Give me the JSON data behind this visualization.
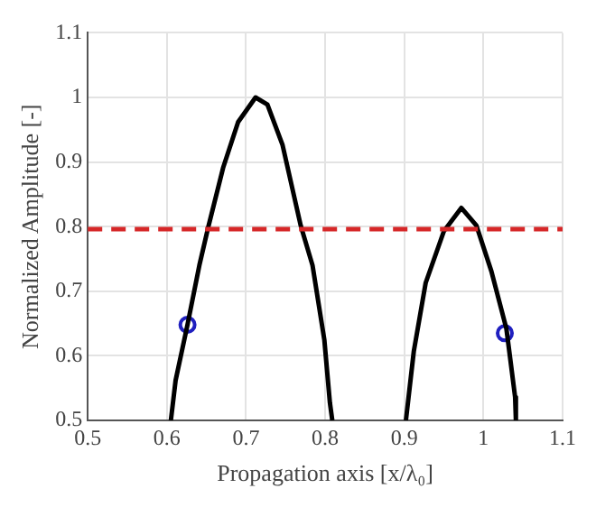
{
  "chart_data": {
    "type": "line",
    "xlabel": "Propagation axis [x/λ₀]",
    "ylabel": "Normalized Amplitude [-]",
    "xlim": [
      0.5,
      1.1
    ],
    "xticks": [
      0.5,
      0.6,
      0.7,
      0.8,
      0.9,
      1,
      1.1
    ],
    "ylim": [
      0.5,
      1.1
    ],
    "yticks": [
      0.5,
      0.6,
      0.7,
      0.8,
      0.9,
      1,
      1.1
    ],
    "grid": true,
    "legend": false,
    "line_style": "solid",
    "series": [
      {
        "color": "#000000",
        "marker": "none",
        "x": [
          0.605,
          0.611,
          0.626,
          0.641,
          0.652,
          0.671,
          0.69,
          0.712,
          0.727,
          0.746,
          0.769,
          0.784,
          0.799,
          0.806,
          0.809
        ],
        "values": [
          0.5,
          0.562,
          0.648,
          0.74,
          0.798,
          0.891,
          0.962,
          1.0,
          0.989,
          0.927,
          0.802,
          0.74,
          0.624,
          0.527,
          0.5
        ]
      },
      {
        "color": "#000000",
        "marker": "none",
        "x": [
          0.902,
          0.912,
          0.927,
          0.95,
          0.972,
          0.991,
          1.01,
          1.029,
          1.04,
          1.041
        ],
        "values": [
          0.5,
          0.607,
          0.713,
          0.793,
          0.829,
          0.802,
          0.731,
          0.642,
          0.536,
          0.5
        ]
      },
      {
        "type": "scatter",
        "color": "#1f1fbf",
        "marker": "circle",
        "x": [
          0.626,
          1.027
        ],
        "values": [
          0.648,
          0.635
        ]
      }
    ],
    "ref_lines": [
      {
        "axis": "y",
        "value": 0.796,
        "color": "#d62728",
        "line_style": "dashed"
      }
    ]
  }
}
